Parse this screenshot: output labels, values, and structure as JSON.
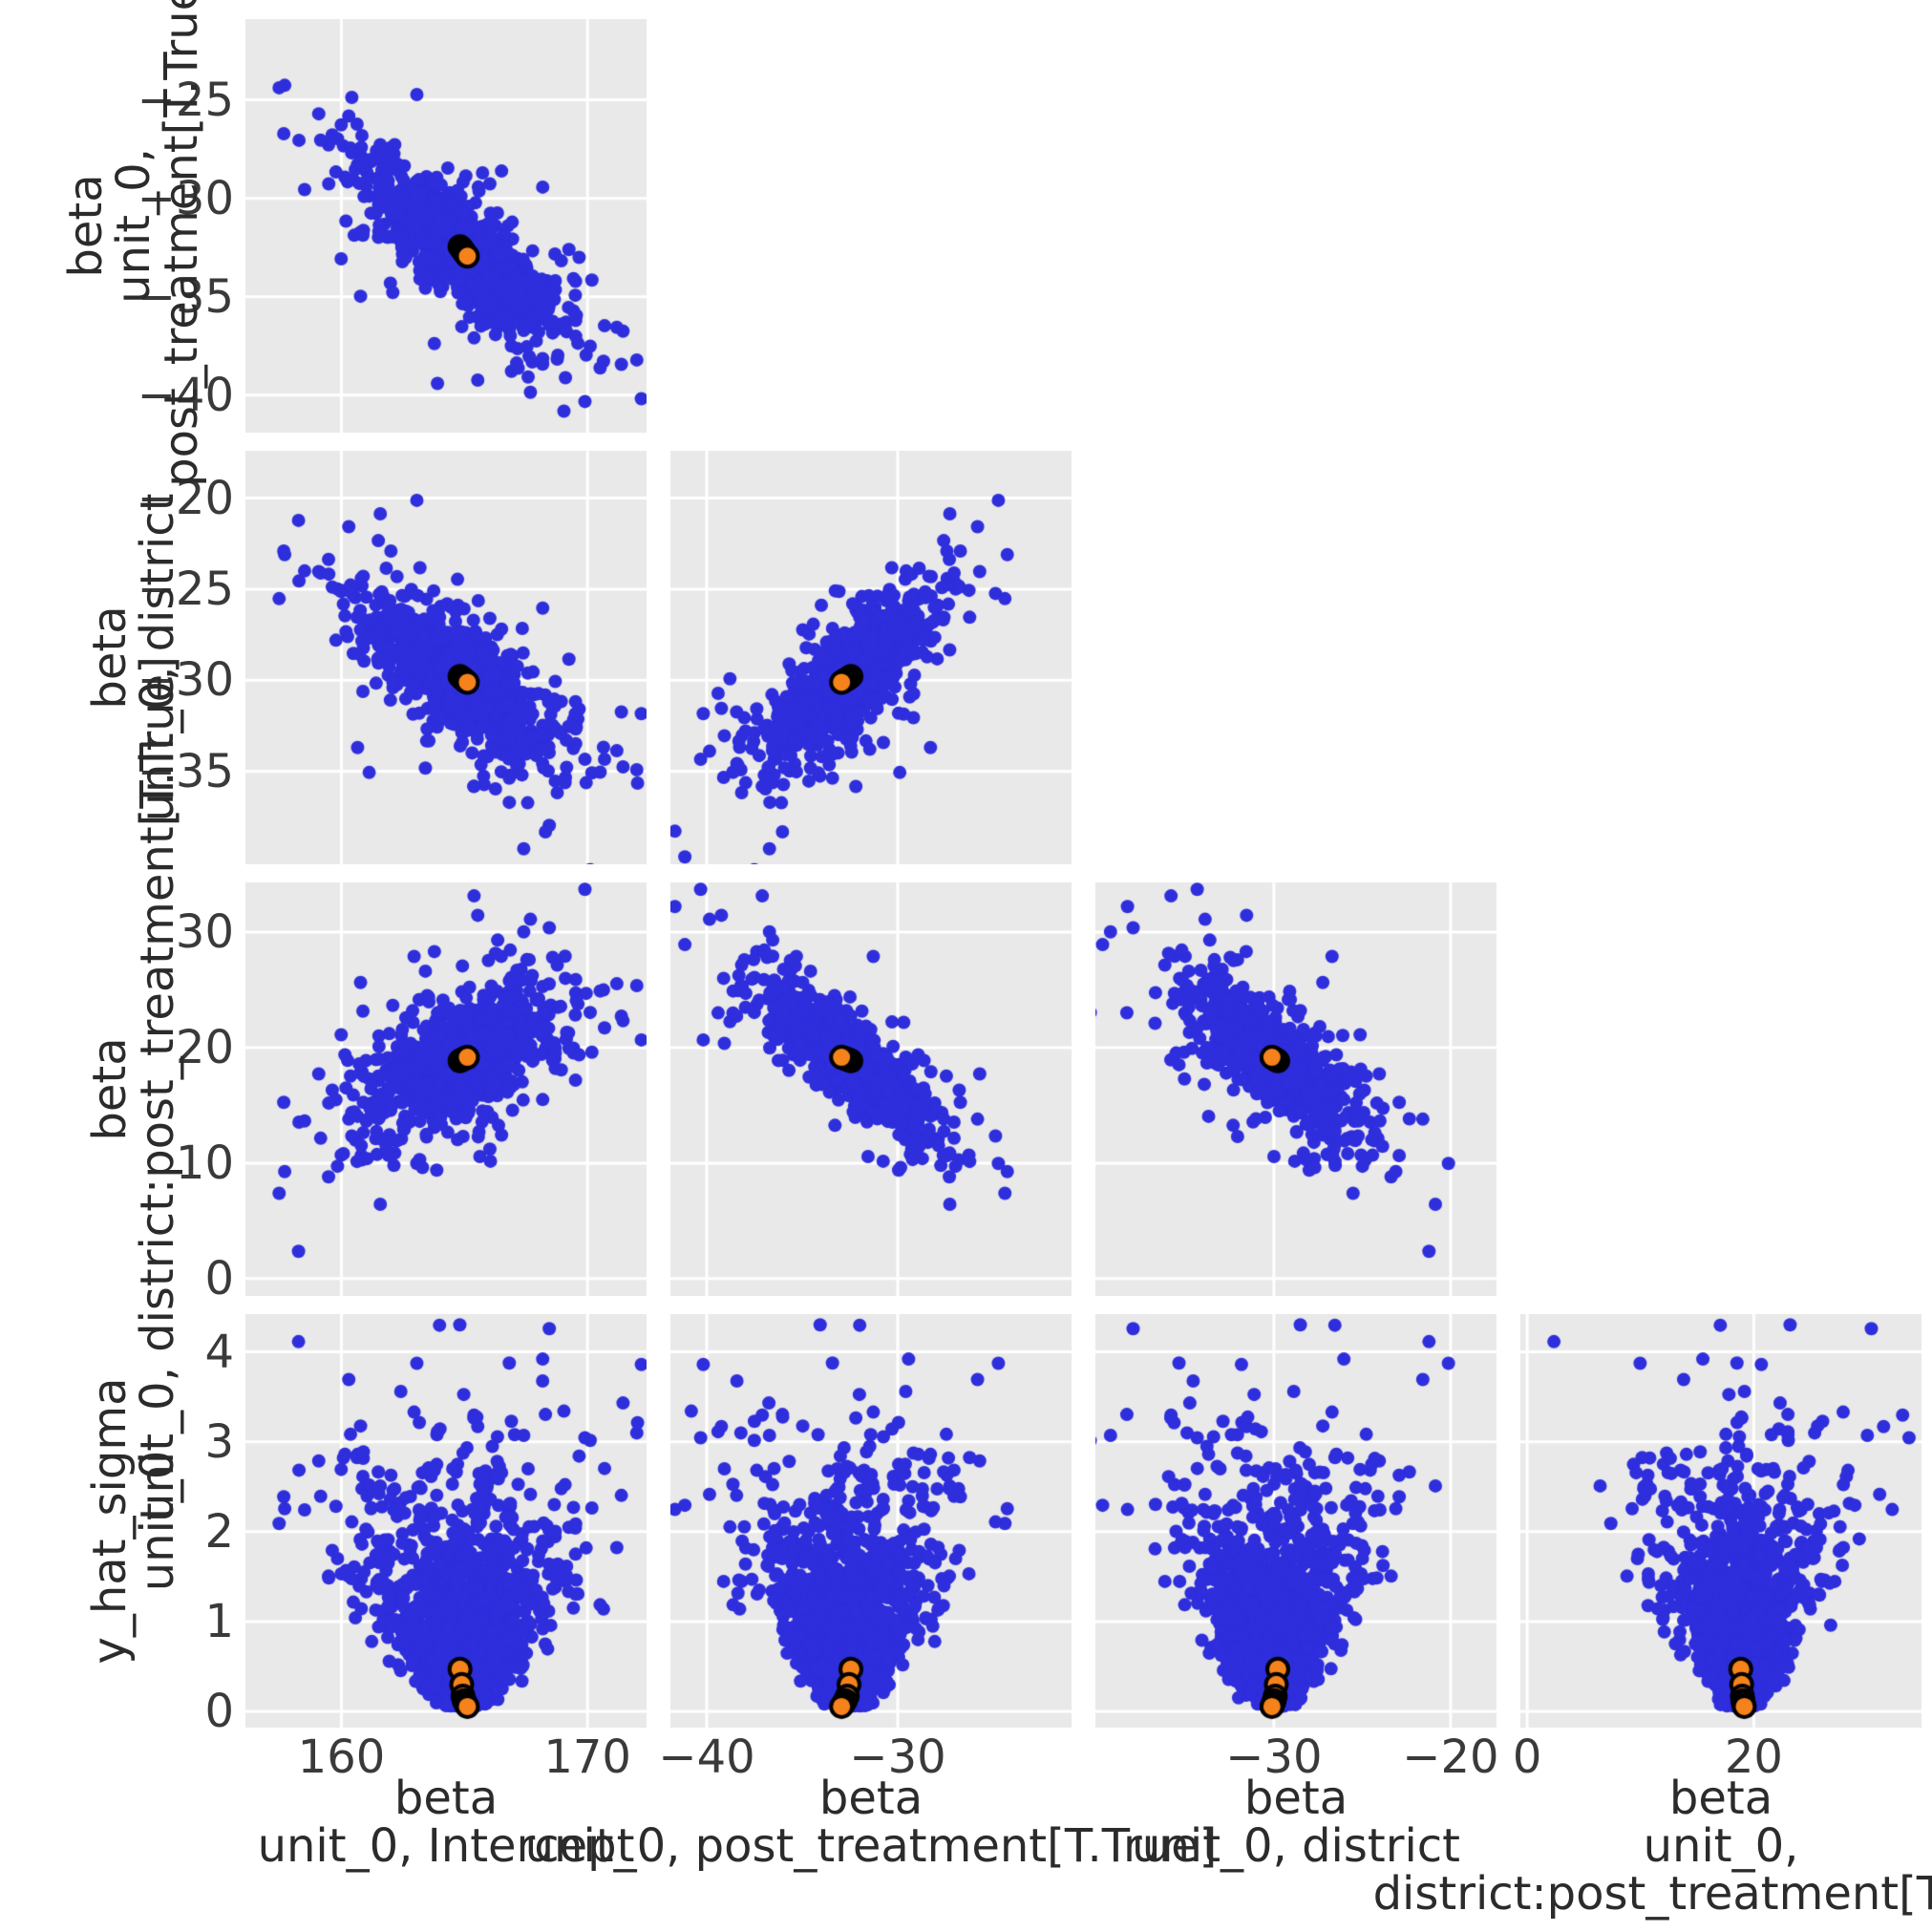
{
  "figure": {
    "kind": "posterior-pair-plot",
    "background": "#ffffff",
    "panel_bg": "#e9e9e9",
    "grid_color": "#ffffff",
    "tick_color": "#3a3a3a",
    "label_color": "#2b2b2b"
  },
  "chart_data": {
    "type": "scatter",
    "title": "",
    "subtitle": "",
    "layout_hint": "lower-triangular pair plot, 4 x-variables vs 4 y-variables, gray panels with white grid, no legend",
    "x_vars": [
      {
        "label_lines": [
          "beta",
          "unit_0, Intercept"
        ],
        "lim": [
          156.1,
          172.4
        ],
        "ticks": [
          {
            "v": 160,
            "label": "160"
          },
          {
            "v": 170,
            "label": "170"
          }
        ]
      },
      {
        "label_lines": [
          "beta",
          "unit_0, post_treatment[T.True]"
        ],
        "lim": [
          -41.9,
          -20.9
        ],
        "ticks": [
          {
            "v": -40,
            "label": "−40"
          },
          {
            "v": -30,
            "label": "−30"
          }
        ]
      },
      {
        "label_lines": [
          "beta",
          "unit_0, district"
        ],
        "lim": [
          -40.1,
          -17.4
        ],
        "ticks": [
          {
            "v": -30,
            "label": "−30"
          },
          {
            "v": -20,
            "label": "−20"
          }
        ]
      },
      {
        "label_lines": [
          "beta",
          "unit_0,",
          "district:post_treatment[T.True]"
        ],
        "lim": [
          -0.6,
          34.8
        ],
        "ticks": [
          {
            "v": 0,
            "label": "0"
          },
          {
            "v": 20,
            "label": "20"
          }
        ]
      }
    ],
    "y_vars": [
      {
        "label_lines": [
          "beta",
          "unit_0,",
          "post_treatment[T.True]"
        ],
        "lim": [
          -41.9,
          -20.9
        ],
        "ticks": [
          {
            "v": -25,
            "label": "−25"
          },
          {
            "v": -30,
            "label": "−30"
          },
          {
            "v": -35,
            "label": "−35"
          },
          {
            "v": -40,
            "label": "−40"
          }
        ]
      },
      {
        "label_lines": [
          "beta",
          "unit_0, district"
        ],
        "lim": [
          -40.1,
          -17.4
        ],
        "ticks": [
          {
            "v": -20,
            "label": "−20"
          },
          {
            "v": -25,
            "label": "−25"
          },
          {
            "v": -30,
            "label": "−30"
          },
          {
            "v": -35,
            "label": "−35"
          }
        ]
      },
      {
        "label_lines": [
          "beta",
          "unit_0, district:post_treatment[T.True]"
        ],
        "lim": [
          -1.5,
          34.3
        ],
        "ticks": [
          {
            "v": 30,
            "label": "30"
          },
          {
            "v": 20,
            "label": "20"
          },
          {
            "v": 10,
            "label": "10"
          },
          {
            "v": 0,
            "label": "0"
          }
        ]
      },
      {
        "label_lines": [
          "y_hat_sigma",
          "unit_0"
        ],
        "lim": [
          -0.18,
          4.42
        ],
        "ticks": [
          {
            "v": 4,
            "label": "4"
          },
          {
            "v": 3,
            "label": "3"
          },
          {
            "v": 2,
            "label": "2"
          },
          {
            "v": 1,
            "label": "1"
          },
          {
            "v": 0,
            "label": "0"
          }
        ]
      }
    ],
    "series": [
      {
        "name": "posterior draws",
        "color": "#2e2edd",
        "marker_radius": 7,
        "generated": true,
        "n": 1900,
        "seed": 1357924,
        "means": [
          164.92,
          -32.6,
          -29.95,
          19.0
        ],
        "sds": [
          1.85,
          2.05,
          2.1,
          3.1
        ],
        "latent_weights": [
          [
            1,
            0,
            0,
            0
          ],
          [
            -0.78,
            0.62,
            0,
            0
          ],
          [
            -0.68,
            0.33,
            0.65,
            0
          ],
          [
            0.55,
            -0.6,
            -0.27,
            0.51
          ]
        ],
        "sigma_dist": {
          "base": 0.06,
          "scale": 1.1,
          "power": 1.1,
          "max": 4.3
        },
        "funnel": {
          "base": 0.18,
          "slope": 0.62
        }
      },
      {
        "name": "reference points",
        "color": "#f6821b",
        "edge_color": "#000000",
        "marker_radius": 11,
        "edge_width": 4,
        "points": [
          [
            164.82,
            -32.45,
            -29.78,
            18.85,
            0.47
          ],
          [
            164.89,
            -32.55,
            -29.86,
            18.93,
            0.3
          ],
          [
            164.94,
            -32.64,
            -29.92,
            18.99,
            0.17
          ],
          [
            164.99,
            -32.74,
            -29.98,
            19.04,
            0.12
          ],
          [
            165.05,
            -32.84,
            -30.04,
            19.1,
            0.085
          ],
          [
            165.12,
            -32.94,
            -30.11,
            19.16,
            0.055
          ]
        ]
      }
    ]
  }
}
